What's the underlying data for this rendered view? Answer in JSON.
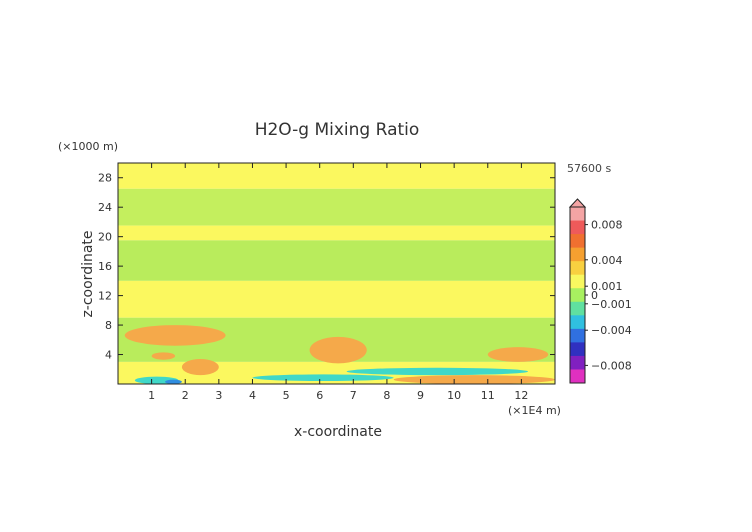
{
  "chart_data": {
    "type": "heatmap",
    "title": "H2O-g Mixing Ratio",
    "xlabel": "x-coordinate",
    "ylabel": "z-coordinate",
    "x_unit": "(×1E4 m)",
    "y_unit": "(×1000 m)",
    "time_label": "57600 s",
    "xlim": [
      0,
      13
    ],
    "ylim": [
      0,
      30
    ],
    "x_ticks": [
      1,
      2,
      3,
      4,
      5,
      6,
      7,
      8,
      9,
      10,
      11,
      12
    ],
    "y_ticks": [
      4,
      8,
      12,
      16,
      20,
      24,
      28
    ],
    "background_level": "slightly positive (yellow) and near-zero (green) layers",
    "colorbar": {
      "min": -0.01,
      "max": 0.01,
      "tick_values": [
        0.008,
        0.004,
        0.001,
        0,
        -0.001,
        -0.004,
        -0.008
      ],
      "tick_labels": [
        "0.008",
        "0.004",
        "0.001",
        "0",
        "−0.001",
        "−0.004",
        "−0.008"
      ],
      "colors_top_to_bottom": [
        "#f4a4a4",
        "#ee5a5a",
        "#f07030",
        "#f5a030",
        "#f8d040",
        "#f8f860",
        "#a8f060",
        "#60e0a0",
        "#30c0e0",
        "#3070e0",
        "#3030c0",
        "#8020c0",
        "#e030c0"
      ]
    },
    "regions": [
      {
        "level": "yellow",
        "x": [
          0,
          13
        ],
        "y": [
          26.5,
          30
        ],
        "color": "#fbf85f"
      },
      {
        "level": "green",
        "x": [
          0,
          13
        ],
        "y": [
          21.5,
          26.5
        ],
        "color": "#c4ef5e"
      },
      {
        "level": "yellow",
        "x": [
          0,
          13
        ],
        "y": [
          19.5,
          21.5
        ],
        "color": "#fbf85f"
      },
      {
        "level": "green",
        "x": [
          0,
          13
        ],
        "y": [
          14,
          19.5
        ],
        "color": "#b9ec5c"
      },
      {
        "level": "yellow",
        "x": [
          0,
          13
        ],
        "y": [
          9,
          14
        ],
        "color": "#fbf85f"
      },
      {
        "level": "green",
        "x": [
          0,
          13
        ],
        "y": [
          3,
          9
        ],
        "color": "#b9ec5c"
      },
      {
        "level": "yellow",
        "x": [
          0,
          13
        ],
        "y": [
          0,
          3
        ],
        "color": "#fbf85f"
      },
      {
        "level": "orange",
        "x": [
          0.2,
          3.2
        ],
        "y": [
          5.2,
          8
        ],
        "color": "#f5a94a"
      },
      {
        "level": "orange",
        "x": [
          1.0,
          1.7
        ],
        "y": [
          3.3,
          4.3
        ],
        "color": "#f5a94a"
      },
      {
        "level": "orange",
        "x": [
          1.9,
          3.0
        ],
        "y": [
          1.2,
          3.4
        ],
        "color": "#f5a94a"
      },
      {
        "level": "orange",
        "x": [
          5.7,
          7.4
        ],
        "y": [
          2.8,
          6.4
        ],
        "color": "#f5a94a"
      },
      {
        "level": "orange",
        "x": [
          8.2,
          13
        ],
        "y": [
          0,
          1.2
        ],
        "color": "#f5a94a"
      },
      {
        "level": "orange",
        "x": [
          11.0,
          12.8
        ],
        "y": [
          3.0,
          5.0
        ],
        "color": "#f5a94a"
      },
      {
        "level": "cyan",
        "x": [
          0.5,
          1.8
        ],
        "y": [
          0,
          1.0
        ],
        "color": "#40d8c8"
      },
      {
        "level": "cyan",
        "x": [
          4.0,
          8.2
        ],
        "y": [
          0.4,
          1.3
        ],
        "color": "#40d8c8"
      },
      {
        "level": "cyan",
        "x": [
          6.8,
          12.2
        ],
        "y": [
          1.2,
          2.2
        ],
        "color": "#40d8c8"
      },
      {
        "level": "blue",
        "x": [
          1.4,
          1.9
        ],
        "y": [
          0,
          0.6
        ],
        "color": "#2f8de0"
      }
    ]
  }
}
